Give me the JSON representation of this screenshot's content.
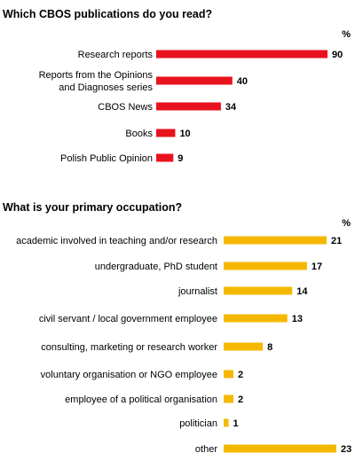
{
  "chart_data": [
    {
      "type": "bar",
      "orientation": "horizontal",
      "title": "Which CBOS publications do you read?",
      "unit": "%",
      "color": "#e8121e",
      "categories": [
        [
          "Research reports"
        ],
        [
          "Reports from the Opinions",
          "and Diagnoses series"
        ],
        [
          "CBOS News"
        ],
        [
          "Books"
        ],
        [
          "Polish Public Opinion"
        ]
      ],
      "values": [
        90,
        40,
        34,
        10,
        9
      ],
      "xlim": [
        0,
        90
      ],
      "grid": false,
      "legend": "none"
    },
    {
      "type": "bar",
      "orientation": "horizontal",
      "title": "What is your primary occupation?",
      "unit": "%",
      "color": "#f5b800",
      "categories": [
        [
          "academic involved in teaching and/or research"
        ],
        [
          "undergraduate, PhD student"
        ],
        [
          "journalist"
        ],
        [
          "civil servant / local government employee"
        ],
        [
          "consulting, marketing or research worker"
        ],
        [
          "voluntary organisation or NGO employee"
        ],
        [
          "employee of a political organisation"
        ],
        [
          "politician"
        ],
        [
          "other"
        ]
      ],
      "values": [
        21,
        17,
        14,
        13,
        8,
        2,
        2,
        1,
        23
      ],
      "xlim": [
        0,
        23
      ],
      "grid": false,
      "legend": "none"
    }
  ]
}
